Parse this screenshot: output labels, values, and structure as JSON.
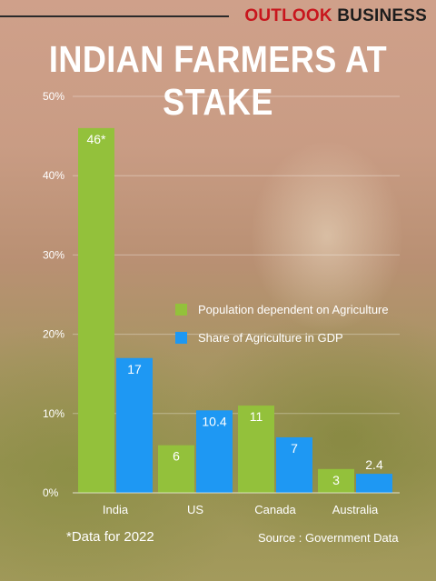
{
  "brand": {
    "part1": "OUTLOOK",
    "part2": "BUSINESS"
  },
  "title": "INDIAN FARMERS AT STAKE",
  "footnote": "*Data for 2022",
  "source": "Source : Government Data",
  "colors": {
    "brand_red": "#c8161d",
    "series_green": "#93c13b",
    "series_blue": "#1e98f3",
    "text": "#ffffff"
  },
  "chart_data": {
    "type": "bar",
    "title": "INDIAN FARMERS AT STAKE",
    "categories": [
      "India",
      "US",
      "Canada",
      "Australia"
    ],
    "series": [
      {
        "name": "Population dependent on Agriculture",
        "values": [
          46,
          6,
          11,
          3
        ],
        "labels": [
          "46*",
          "6",
          "11",
          "3"
        ]
      },
      {
        "name": "Share of Agriculture in GDP",
        "values": [
          17,
          10.4,
          7,
          2.4
        ],
        "labels": [
          "17",
          "10.4",
          "7",
          "2.4"
        ]
      }
    ],
    "ylim": [
      0,
      50
    ],
    "yticks": [
      0,
      10,
      20,
      30,
      40,
      50
    ],
    "ytick_labels": [
      "0%",
      "10%",
      "20%",
      "30%",
      "40%",
      "50%"
    ],
    "grid": true,
    "legend": "center-right"
  }
}
